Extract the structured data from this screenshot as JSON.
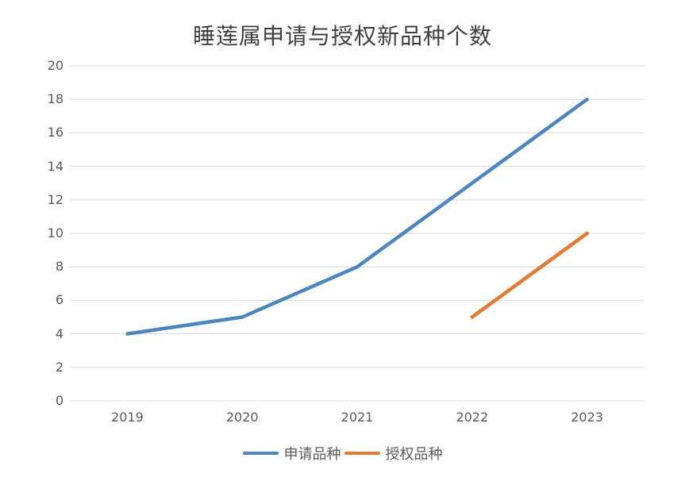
{
  "chart_data": {
    "type": "line",
    "title": "睡莲属申请与授权新品种个数",
    "categories": [
      "2019",
      "2020",
      "2021",
      "2022",
      "2023"
    ],
    "series": [
      {
        "name": "申请品种",
        "values": [
          4,
          5,
          8,
          13,
          18
        ],
        "color": "#4d86bf"
      },
      {
        "name": "授权品种",
        "values": [
          null,
          null,
          null,
          5,
          10
        ],
        "color": "#e07b33"
      }
    ],
    "xlabel": "",
    "ylabel": "",
    "ylim": [
      0,
      20
    ],
    "ytick_step": 2,
    "grid": "on",
    "grid_color": "#d9d9d9",
    "tick_label_color": "#595959",
    "title_color": "#3f3f3f",
    "legend_position": "bottom"
  }
}
